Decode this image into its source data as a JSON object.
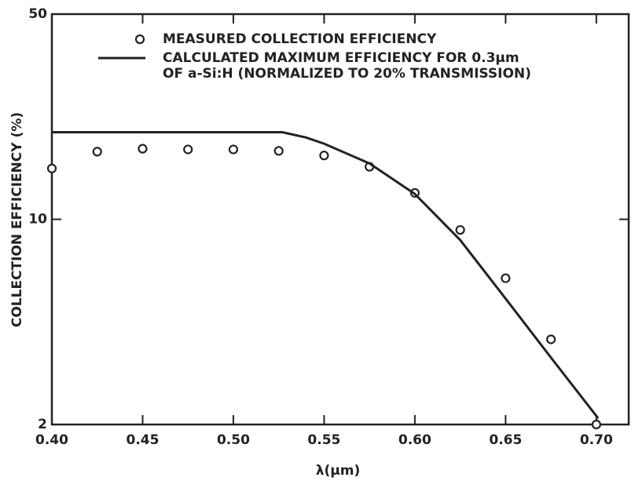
{
  "chart_data": {
    "type": "line",
    "x_label": "λ(μm)",
    "y_label": "COLLECTION EFFICIENCY (%)",
    "log_y": true,
    "xlim": [
      0.4,
      0.72
    ],
    "xticks": [
      {
        "value": 0.4,
        "label": "0.40"
      },
      0.45,
      {
        "value": 0.5,
        "label": "0.50"
      },
      0.55,
      {
        "value": 0.6,
        "label": "0.60"
      },
      0.65,
      {
        "value": 0.7,
        "label": "0.70"
      }
    ],
    "ylim": [
      2,
      50
    ],
    "yticks": [
      2,
      10,
      50
    ],
    "legend": "top",
    "series": [
      {
        "name": [
          "MEASURED COLLECTION EFFICIENCY"
        ],
        "kind": "scatter",
        "color": "#222222",
        "x": [
          0.4,
          0.425,
          0.45,
          0.475,
          0.5,
          0.525,
          0.55,
          0.575,
          0.6,
          0.625,
          0.65,
          0.675,
          0.7
        ],
        "values": [
          14.9,
          17.0,
          17.4,
          17.3,
          17.3,
          17.1,
          16.5,
          15.1,
          12.3,
          9.2,
          6.3,
          3.9,
          2.0
        ]
      },
      {
        "name": [
          "CALCULATED MAXIMUM EFFICIENCY FOR 0.3μm",
          "OF a-Si:H (NORMALIZED TO 20% TRANSMISSION)"
        ],
        "kind": "line",
        "color": "#222222",
        "x": [
          0.4,
          0.45,
          0.5,
          0.527,
          0.54,
          0.55,
          0.575,
          0.6,
          0.625,
          0.65,
          0.675,
          0.701
        ],
        "values": [
          19.8,
          19.8,
          19.8,
          19.8,
          19.0,
          18.1,
          15.5,
          12.2,
          8.5,
          5.37,
          3.38,
          2.1
        ]
      }
    ]
  }
}
